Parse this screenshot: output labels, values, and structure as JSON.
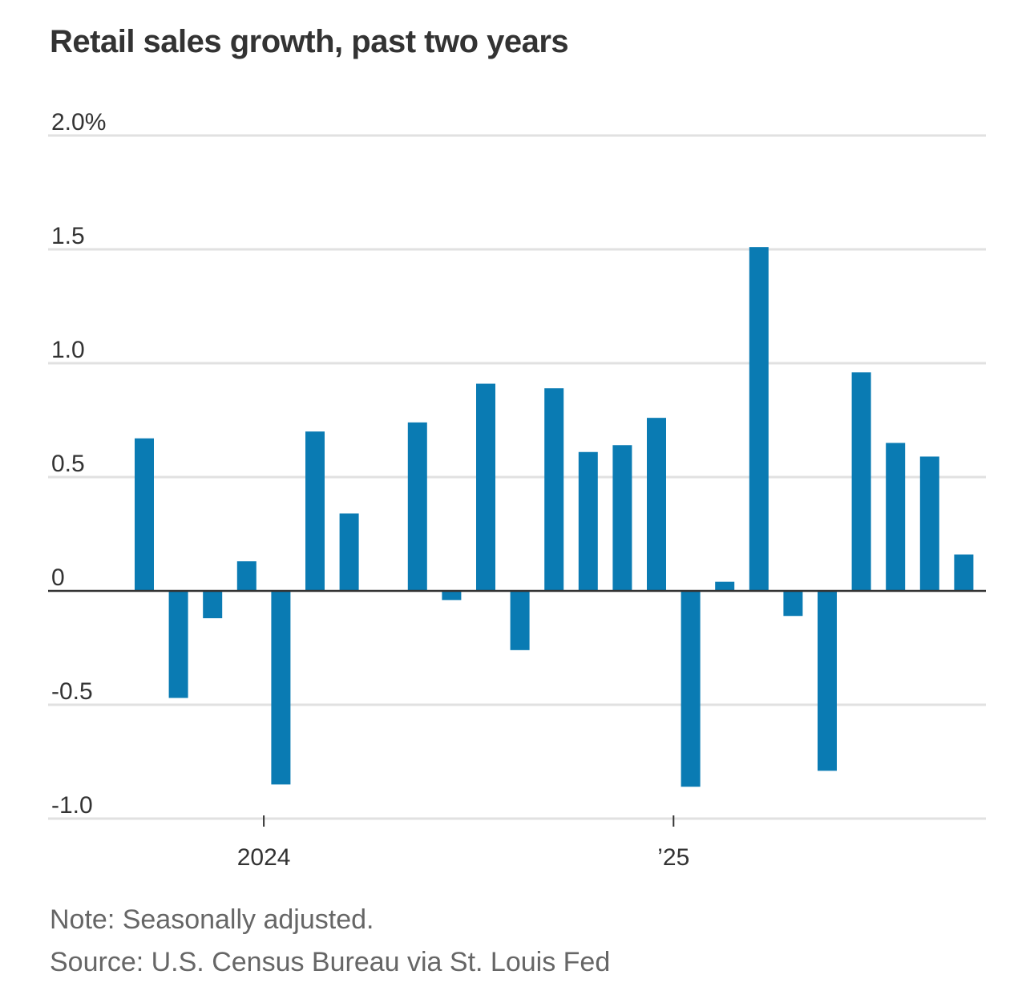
{
  "chart_data": {
    "type": "bar",
    "title": "Retail sales growth, past two years",
    "xlabel": "",
    "ylabel": "",
    "ylim": [
      -1.0,
      2.0
    ],
    "yticks": [
      2.0,
      1.5,
      1.0,
      0.5,
      0,
      -0.5,
      -1.0
    ],
    "ytick_labels": [
      "2.0%",
      "1.5",
      "1.0",
      "0.5",
      "0",
      "-0.5",
      "-1.0"
    ],
    "categories": [
      "2023-09",
      "2023-10",
      "2023-11",
      "2023-12",
      "2024-01",
      "2024-02",
      "2024-03",
      "2024-04",
      "2024-05",
      "2024-06",
      "2024-07",
      "2024-08",
      "2024-09",
      "2024-10",
      "2024-11",
      "2024-12",
      "2025-01",
      "2025-02",
      "2025-03",
      "2025-04",
      "2025-05",
      "2025-06",
      "2025-07",
      "2025-08",
      "2025-09"
    ],
    "values": [
      0.67,
      -0.47,
      -0.12,
      0.13,
      -0.85,
      0.7,
      0.34,
      null,
      0.74,
      -0.04,
      0.91,
      -0.26,
      0.89,
      0.61,
      0.64,
      0.76,
      -0.86,
      0.04,
      1.51,
      -0.11,
      -0.79,
      0.96,
      0.65,
      0.59,
      0.16
    ],
    "xtick_labels": [
      {
        "label": "2024",
        "category": "2024-01"
      },
      {
        "label": "’25",
        "category": "2025-01"
      }
    ],
    "bar_color": "#0a7bb3",
    "grid": true
  },
  "note": "Note: Seasonally adjusted.",
  "source": "Source: U.S. Census Bureau via St. Louis Fed"
}
